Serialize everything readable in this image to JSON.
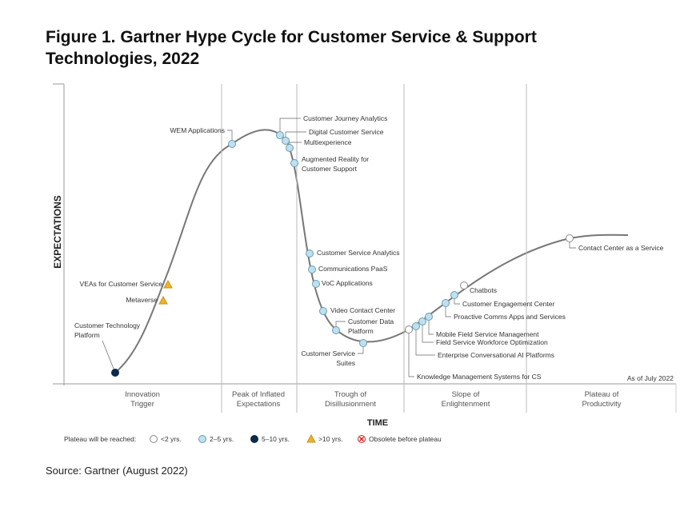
{
  "header": {
    "title": [
      "Figure 1. Gartner Hype Cycle for Customer Service & Support",
      "Technologies, 2022"
    ]
  },
  "axes": {
    "y": "EXPECTATIONS",
    "x": "TIME"
  },
  "as_of": "As of July 2022",
  "phases": [
    [
      "Innovation",
      "Trigger"
    ],
    [
      "Peak of Inflated",
      "Expectations"
    ],
    [
      "Trough of",
      "Disillusionment"
    ],
    [
      "Slope of",
      "Enlightenment"
    ],
    [
      "Plateau of",
      "Productivity"
    ]
  ],
  "legend": {
    "title": "Plateau will be reached:",
    "items": [
      "<2 yrs.",
      "2–5 yrs.",
      "5–10 yrs.",
      ">10 yrs.",
      "Obsolete before plateau"
    ]
  },
  "nodes": [
    {
      "label": [
        "WEM Applications"
      ],
      "plateau": "2–5 yrs."
    },
    {
      "label": [
        "Customer Journey Analytics"
      ],
      "plateau": "2–5 yrs."
    },
    {
      "label": [
        "Digital Customer Service"
      ],
      "plateau": "2–5 yrs."
    },
    {
      "label": [
        "Multiexperience"
      ],
      "plateau": "2–5 yrs."
    },
    {
      "label": [
        "Augmented Reality for",
        "Customer Support"
      ],
      "plateau": "2–5 yrs."
    },
    {
      "label": [
        "Customer Service Analytics"
      ],
      "plateau": "2–5 yrs."
    },
    {
      "label": [
        "Communications PaaS"
      ],
      "plateau": "2–5 yrs."
    },
    {
      "label": [
        "VoC Applications"
      ],
      "plateau": "2–5 yrs."
    },
    {
      "label": [
        "Video Contact Center"
      ],
      "plateau": "2–5 yrs."
    },
    {
      "label": [
        "Customer Data",
        "Platform"
      ],
      "plateau": "2–5 yrs."
    },
    {
      "label": [
        "Customer Service",
        "Suites"
      ],
      "plateau": "2–5 yrs."
    },
    {
      "label": [
        "Knowledge Management Systems for CS"
      ],
      "plateau": "<2 yrs."
    },
    {
      "label": [
        "Enterprise Conversational AI Platforms"
      ],
      "plateau": "2–5 yrs."
    },
    {
      "label": [
        "Field Service Workforce Optimization"
      ],
      "plateau": "2–5 yrs."
    },
    {
      "label": [
        "Mobile Field Service Management"
      ],
      "plateau": "2–5 yrs."
    },
    {
      "label": [
        "Proactive Comms Apps and Services"
      ],
      "plateau": "2–5 yrs."
    },
    {
      "label": [
        "Customer Engagement Center"
      ],
      "plateau": "2–5 yrs."
    },
    {
      "label": [
        "Chatbots"
      ],
      "plateau": "<2 yrs."
    },
    {
      "label": [
        "Contact Center as a Service"
      ],
      "plateau": "<2 yrs."
    },
    {
      "label": [
        "VEAs for Customer Service"
      ],
      "plateau": ">10 yrs."
    },
    {
      "label": [
        "Metaverse"
      ],
      "plateau": ">10 yrs."
    },
    {
      "label": [
        "Customer Technology",
        "Platform"
      ],
      "plateau": "5–10 yrs."
    }
  ],
  "source": "Source: Gartner (August 2022)"
}
